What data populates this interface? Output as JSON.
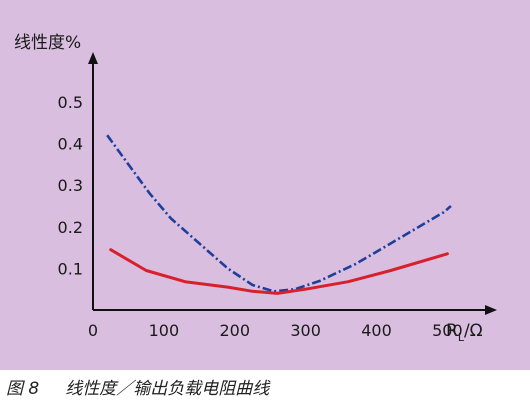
{
  "colors": {
    "background": "#d9bedf",
    "axis": "#111111",
    "solid_series": "#d8202c",
    "dashed_series": "#1f3f9a"
  },
  "caption": {
    "figure_number": "图 8",
    "text": "线性度／输出负载电阻曲线"
  },
  "chart_data": {
    "type": "line",
    "title": "",
    "ylabel": "线性度%",
    "xlabel_main": "R",
    "xlabel_sub": "L",
    "xlabel_suffix": "/Ω",
    "xlim": [
      0,
      570
    ],
    "ylim": [
      0,
      0.62
    ],
    "xticks": [
      0,
      100,
      200,
      300,
      400,
      500
    ],
    "yticks": [
      0.1,
      0.2,
      0.3,
      0.4,
      0.5
    ],
    "ytick_labels": [
      "0.1",
      "0.2",
      "0.3",
      "0.4",
      "0.5"
    ],
    "grid": false,
    "series": [
      {
        "style": "dashed",
        "color": "#1f3f9a",
        "points": [
          [
            20,
            0.42
          ],
          [
            50,
            0.35
          ],
          [
            80,
            0.28
          ],
          [
            110,
            0.22
          ],
          [
            150,
            0.16
          ],
          [
            190,
            0.1
          ],
          [
            225,
            0.06
          ],
          [
            255,
            0.045
          ],
          [
            285,
            0.05
          ],
          [
            320,
            0.07
          ],
          [
            345,
            0.09
          ],
          [
            370,
            0.11
          ],
          [
            410,
            0.15
          ],
          [
            450,
            0.19
          ],
          [
            495,
            0.235
          ],
          [
            505,
            0.25
          ]
        ]
      },
      {
        "style": "solid",
        "color": "#d8202c",
        "points": [
          [
            25,
            0.145
          ],
          [
            75,
            0.095
          ],
          [
            130,
            0.068
          ],
          [
            190,
            0.055
          ],
          [
            225,
            0.045
          ],
          [
            260,
            0.04
          ],
          [
            300,
            0.05
          ],
          [
            360,
            0.068
          ],
          [
            420,
            0.095
          ],
          [
            500,
            0.135
          ]
        ]
      }
    ]
  }
}
